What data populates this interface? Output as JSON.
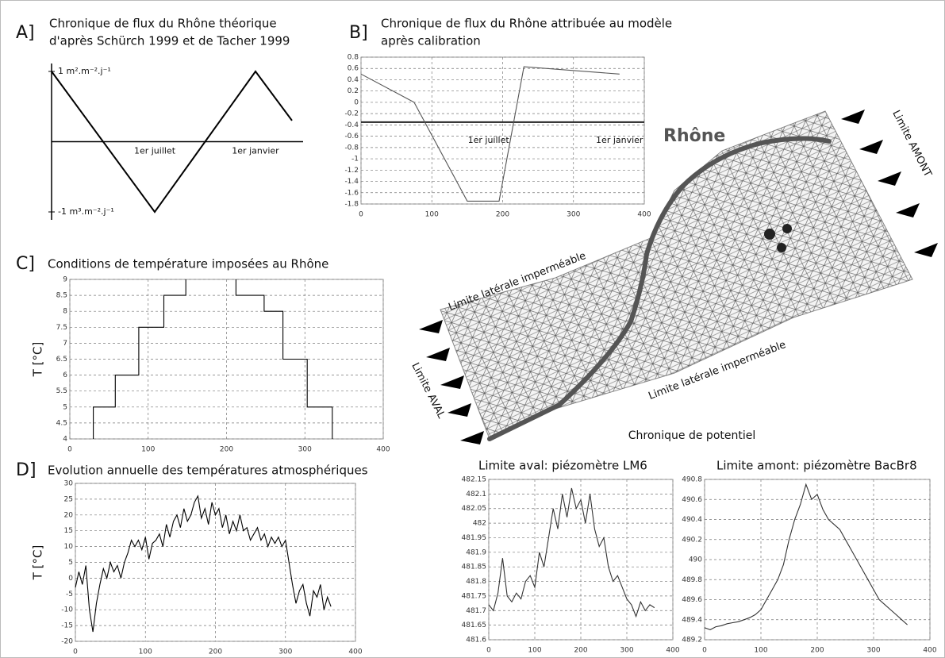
{
  "chart_data": [
    {
      "type": "line",
      "panel": "A]",
      "title": [
        "Chronique de flux du Rhône théorique",
        "d'après Schürch 1999 et de Tacher 1999"
      ],
      "categories": [
        null,
        "1er juillet",
        "1er janvier",
        null
      ],
      "values": [
        1,
        -1,
        1,
        0.3
      ],
      "color": "#000000",
      "ylim": [
        -1,
        1
      ],
      "yticks": [
        {
          "value": 1,
          "label": "1 m².m⁻².j⁻¹"
        },
        {
          "value": -1,
          "label": "-1 m³.m⁻².j⁻¹"
        }
      ],
      "grid": false
    },
    {
      "type": "line",
      "panel": "B]",
      "title": [
        "Chronique de flux du Rhône attribuée au modèle",
        "après calibration"
      ],
      "x": [
        0,
        75,
        150,
        195,
        230,
        365
      ],
      "values": [
        0.5,
        0,
        -1.75,
        -1.75,
        0.63,
        0.5
      ],
      "color": "#555555",
      "xlim": [
        0,
        400
      ],
      "xticks": [
        0,
        100,
        200,
        300,
        400
      ],
      "ylim": [
        -1.8,
        0.8
      ],
      "yticks": [
        0.8,
        0.6,
        0.4,
        0.2,
        0,
        -0.2,
        -0.4,
        -0.6,
        -0.8,
        -1,
        -1.2,
        -1.4,
        -1.6,
        -1.8
      ],
      "reference_line": -0.35,
      "annotations": [
        {
          "text": "1er juillet",
          "x": 180
        },
        {
          "text": "1er janvier",
          "x": 365
        }
      ],
      "grid": true
    },
    {
      "type": "line",
      "panel": "C]",
      "title": [
        "Conditions de température imposées au Rhône"
      ],
      "ylabel": "T [°C]",
      "x": [
        30,
        30,
        58,
        58,
        88,
        88,
        120,
        120,
        148,
        148,
        null,
        212,
        212,
        248,
        248,
        272,
        272,
        303,
        303,
        335,
        335
      ],
      "values": [
        4,
        5,
        5,
        6,
        6,
        7.5,
        7.5,
        8.5,
        8.5,
        9,
        null,
        9,
        8.5,
        8.5,
        8,
        8,
        6.5,
        6.5,
        5,
        5,
        4
      ],
      "color": "#000000",
      "xlim": [
        0,
        400
      ],
      "xticks": [
        0,
        100,
        200,
        300,
        400
      ],
      "ylim": [
        4,
        9
      ],
      "yticks": [
        4,
        4.5,
        5,
        5.5,
        6,
        6.5,
        7,
        7.5,
        8,
        8.5,
        9
      ],
      "grid": true
    },
    {
      "type": "line",
      "panel": "D]",
      "title": [
        "Evolution annuelle des températures atmosphériques"
      ],
      "ylabel": "T [°C]",
      "x": [
        0,
        5,
        10,
        15,
        20,
        25,
        30,
        35,
        40,
        45,
        50,
        55,
        60,
        65,
        70,
        75,
        80,
        85,
        90,
        95,
        100,
        105,
        110,
        115,
        120,
        125,
        130,
        135,
        140,
        145,
        150,
        155,
        160,
        165,
        170,
        175,
        180,
        185,
        190,
        195,
        200,
        205,
        210,
        215,
        220,
        225,
        230,
        235,
        240,
        245,
        250,
        255,
        260,
        265,
        270,
        275,
        280,
        285,
        290,
        295,
        300,
        305,
        310,
        315,
        320,
        325,
        330,
        335,
        340,
        345,
        350,
        355,
        360,
        365
      ],
      "values": [
        -3,
        2,
        -2,
        4,
        -10,
        -17,
        -8,
        -2,
        3,
        0,
        5,
        2,
        4,
        0,
        5,
        8,
        12,
        10,
        12,
        9,
        13,
        6,
        11,
        12,
        14,
        10,
        17,
        13,
        18,
        20,
        16,
        22,
        18,
        20,
        24,
        26,
        19,
        22,
        17,
        24,
        20,
        22,
        16,
        20,
        14,
        18,
        15,
        20,
        15,
        16,
        12,
        14,
        16,
        12,
        14,
        10,
        13,
        11,
        13,
        10,
        12,
        5,
        -2,
        -8,
        -4,
        -2,
        -8,
        -12,
        -4,
        -6,
        -2,
        -10,
        -6,
        -9
      ],
      "color": "#000000",
      "xlim": [
        0,
        400
      ],
      "xticks": [
        0,
        100,
        200,
        300,
        400
      ],
      "ylim": [
        -20,
        30
      ],
      "yticks": [
        -20,
        -15,
        -10,
        -5,
        0,
        5,
        10,
        15,
        20,
        25,
        30
      ],
      "grid": true
    },
    {
      "type": "line",
      "title": [
        "Limite aval: piézomètre LM6"
      ],
      "x": [
        0,
        10,
        20,
        30,
        40,
        50,
        60,
        70,
        80,
        90,
        100,
        110,
        120,
        130,
        140,
        150,
        160,
        170,
        180,
        190,
        200,
        210,
        220,
        230,
        240,
        250,
        260,
        270,
        280,
        290,
        300,
        310,
        320,
        330,
        340,
        350,
        360
      ],
      "values": [
        481.72,
        481.7,
        481.76,
        481.88,
        481.75,
        481.73,
        481.76,
        481.74,
        481.8,
        481.82,
        481.78,
        481.9,
        481.85,
        481.95,
        482.05,
        481.98,
        482.1,
        482.02,
        482.12,
        482.05,
        482.08,
        482.0,
        482.1,
        481.98,
        481.92,
        481.95,
        481.85,
        481.8,
        481.82,
        481.78,
        481.74,
        481.72,
        481.68,
        481.73,
        481.7,
        481.72,
        481.71
      ],
      "color": "#333333",
      "xlim": [
        0,
        400
      ],
      "xticks": [
        0,
        100,
        200,
        300,
        400
      ],
      "ylim": [
        481.6,
        482.15
      ],
      "yticks": [
        481.6,
        481.65,
        481.7,
        481.75,
        481.8,
        481.85,
        481.9,
        481.95,
        482,
        482.05,
        482.1,
        482.15
      ],
      "grid": true
    },
    {
      "type": "line",
      "title": [
        "Limite amont: piézomètre  BacBr8"
      ],
      "x": [
        0,
        10,
        20,
        30,
        40,
        50,
        60,
        70,
        80,
        90,
        100,
        110,
        120,
        130,
        140,
        150,
        160,
        170,
        180,
        190,
        200,
        210,
        220,
        230,
        240,
        250,
        260,
        270,
        280,
        290,
        300,
        310,
        320,
        330,
        340,
        350,
        360
      ],
      "values": [
        489.32,
        489.3,
        489.33,
        489.34,
        489.36,
        489.37,
        489.38,
        489.4,
        489.42,
        489.45,
        489.5,
        489.6,
        489.7,
        489.8,
        489.95,
        490.2,
        490.4,
        490.55,
        490.75,
        490.6,
        490.65,
        490.5,
        490.4,
        490.35,
        490.3,
        490.2,
        490.1,
        490,
        489.9,
        489.8,
        489.7,
        489.6,
        489.55,
        489.5,
        489.45,
        489.4,
        489.35
      ],
      "color": "#333333",
      "xlim": [
        0,
        400
      ],
      "xticks": [
        0,
        100,
        200,
        300,
        400
      ],
      "ylim": [
        489.2,
        490.8
      ],
      "yticks": [
        489.2,
        489.4,
        489.6,
        489.8,
        490,
        490.2,
        490.4,
        490.6,
        490.8
      ],
      "grid": true
    }
  ],
  "model": {
    "river": "Rhône",
    "upstream": "Limite AMONT",
    "downstream": "Limite AVAL",
    "side_top": "Limite latérale imperméable",
    "side_bottom": "Limite latérale imperméable",
    "heading": "Chronique de potentiel"
  }
}
